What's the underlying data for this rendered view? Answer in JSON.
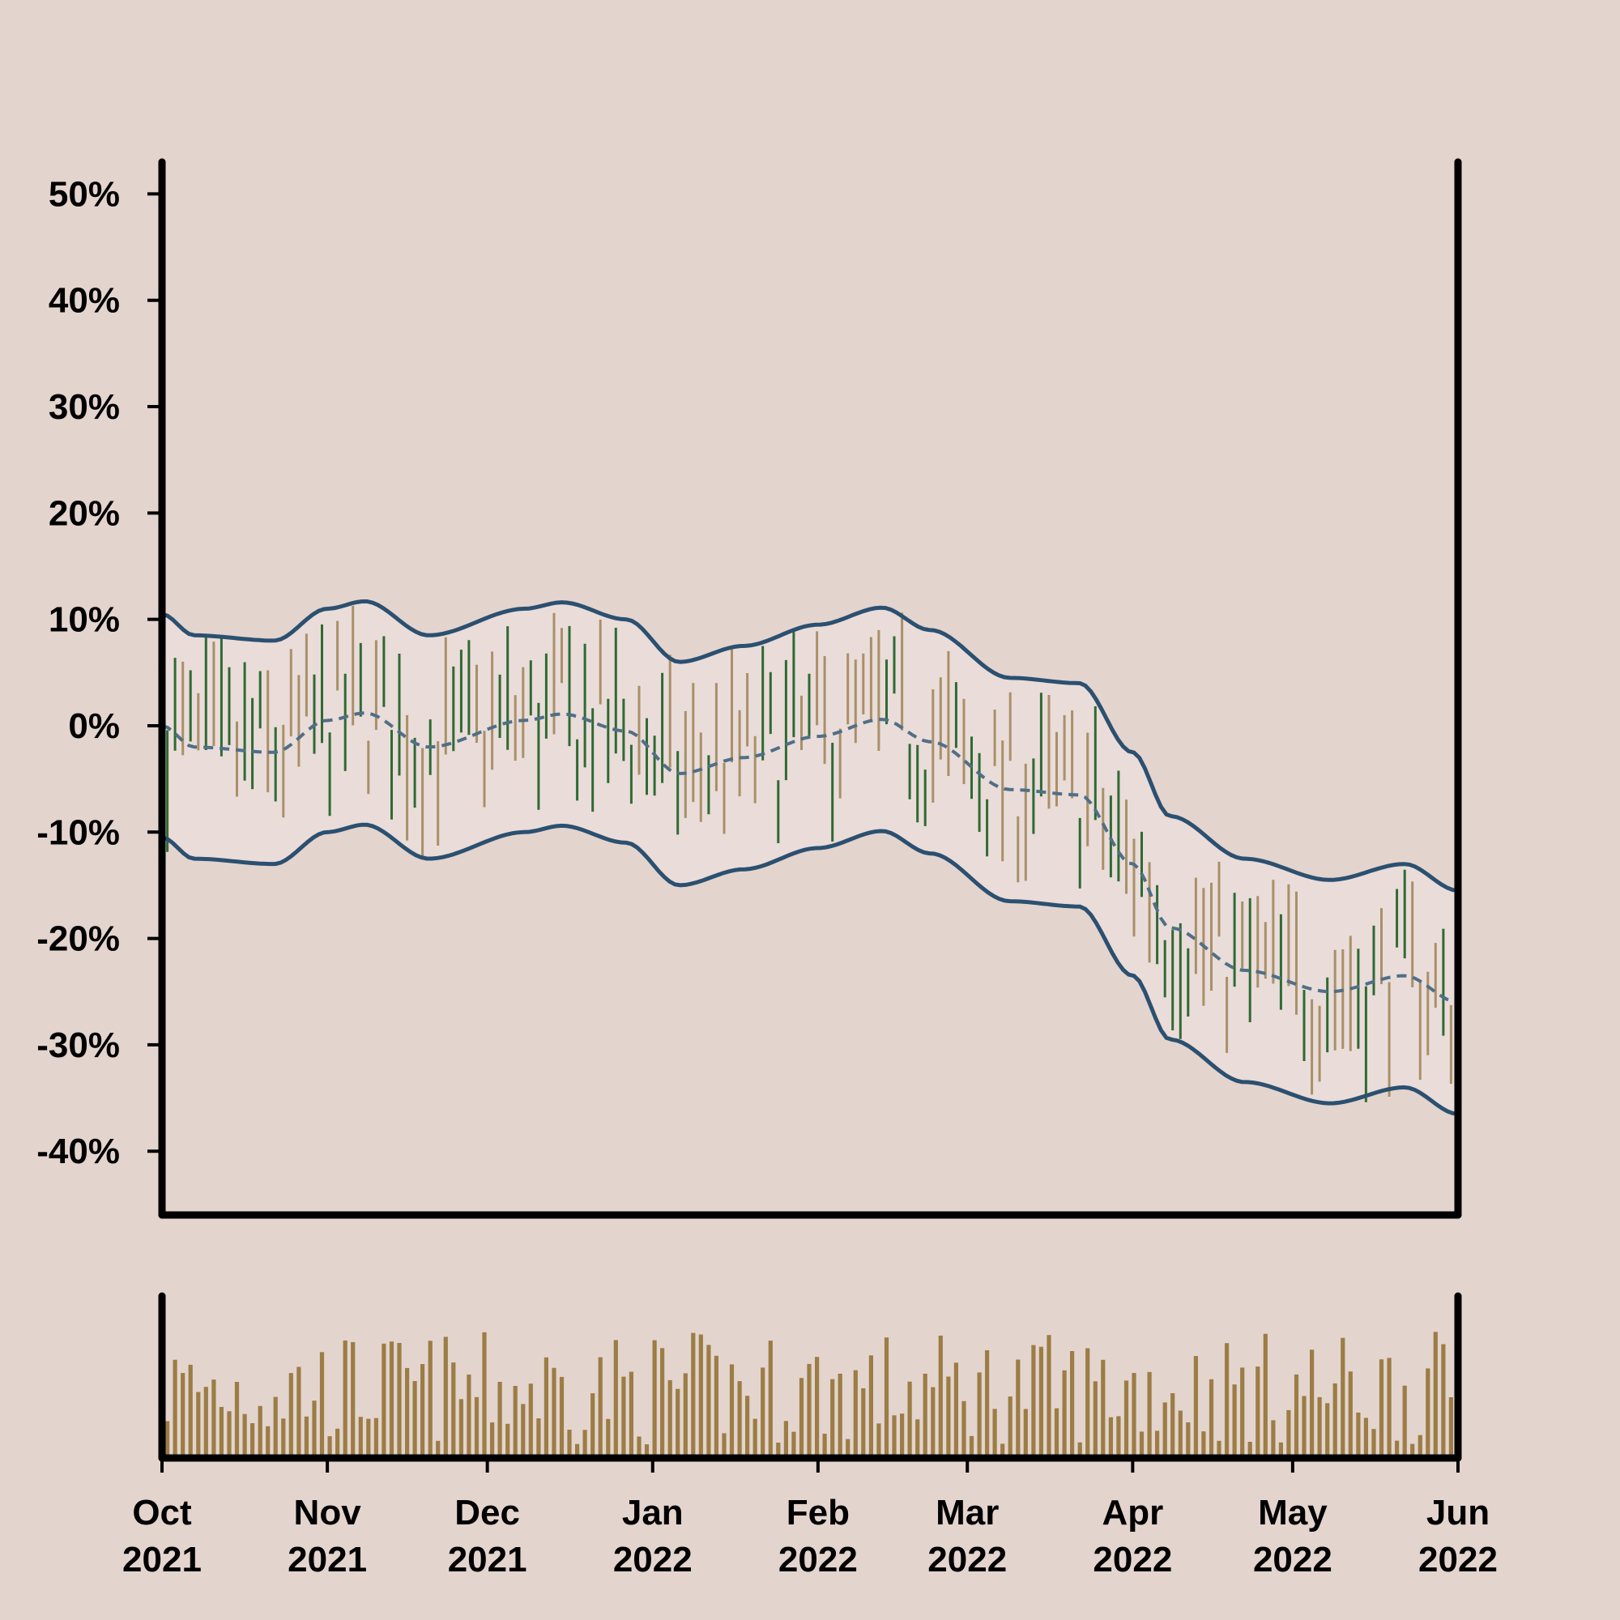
{
  "chart_data": {
    "type": "ohlc",
    "title": "",
    "xlabel": "",
    "ylabel": "",
    "x_start": "2021-10-01",
    "x_end": "2022-06-01",
    "ylim": [
      -46,
      53
    ],
    "grid": false,
    "colors": {
      "background": "#e4d4ce",
      "band_fill": "#eadcd9",
      "band_line": "#2b5070",
      "mid_line": "#4f6f86",
      "bar_up": "#a89068",
      "bar_down": "#2f6a33",
      "volume": "#9b7d45",
      "axis": "#000000"
    },
    "yticks": [
      {
        "value": 50,
        "label": "50%"
      },
      {
        "value": 40,
        "label": "40%"
      },
      {
        "value": 30,
        "label": "30%"
      },
      {
        "value": 20,
        "label": "20%"
      },
      {
        "value": 10,
        "label": "10%"
      },
      {
        "value": 0,
        "label": "0%"
      },
      {
        "value": -10,
        "label": "-10%"
      },
      {
        "value": -20,
        "label": "-20%"
      },
      {
        "value": -30,
        "label": "-30%"
      },
      {
        "value": -40,
        "label": "-40%"
      }
    ],
    "xticks": [
      {
        "date": "2021-10-01",
        "month": "Oct",
        "year": "2021"
      },
      {
        "date": "2021-11-01",
        "month": "Nov",
        "year": "2021"
      },
      {
        "date": "2021-12-01",
        "month": "Dec",
        "year": "2021"
      },
      {
        "date": "2022-01-01",
        "month": "Jan",
        "year": "2022"
      },
      {
        "date": "2022-02-01",
        "month": "Feb",
        "year": "2022"
      },
      {
        "date": "2022-03-01",
        "month": "Mar",
        "year": "2022"
      },
      {
        "date": "2022-04-01",
        "month": "Apr",
        "year": "2022"
      },
      {
        "date": "2022-05-01",
        "month": "May",
        "year": "2022"
      },
      {
        "date": "2022-06-01",
        "month": "Jun",
        "year": "2022"
      }
    ],
    "trend_knots": [
      {
        "date": "2021-10-01",
        "value": 0
      },
      {
        "date": "2021-10-07",
        "value": -2
      },
      {
        "date": "2021-10-22",
        "value": -2.5
      },
      {
        "date": "2021-11-01",
        "value": 0.5
      },
      {
        "date": "2021-11-08",
        "value": 1.2
      },
      {
        "date": "2021-11-20",
        "value": -2
      },
      {
        "date": "2021-12-08",
        "value": 0.5
      },
      {
        "date": "2021-12-15",
        "value": 1.1
      },
      {
        "date": "2021-12-27",
        "value": -0.5
      },
      {
        "date": "2022-01-06",
        "value": -4.5
      },
      {
        "date": "2022-01-18",
        "value": -3
      },
      {
        "date": "2022-02-01",
        "value": -1
      },
      {
        "date": "2022-02-13",
        "value": 0.6
      },
      {
        "date": "2022-02-22",
        "value": -1.5
      },
      {
        "date": "2022-03-09",
        "value": -6
      },
      {
        "date": "2022-03-22",
        "value": -6.5
      },
      {
        "date": "2022-04-01",
        "value": -13
      },
      {
        "date": "2022-04-08",
        "value": -19
      },
      {
        "date": "2022-04-22",
        "value": -23
      },
      {
        "date": "2022-05-08",
        "value": -25
      },
      {
        "date": "2022-05-22",
        "value": -23.5
      },
      {
        "date": "2022-06-01",
        "value": -26
      }
    ],
    "band_halfwidth": 10.5,
    "volume_panel_max": 100
  }
}
